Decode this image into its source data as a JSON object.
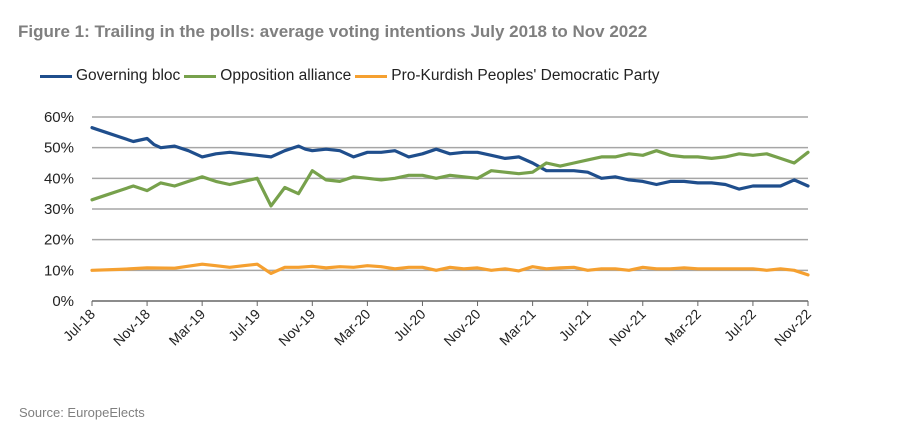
{
  "header": {
    "title": "Figure 1: Trailing in the polls: average voting intentions July 2018 to Nov 2022",
    "source": "Source: EuropeElects"
  },
  "chart_data": {
    "type": "line",
    "title": "Figure 1: Trailing in the polls: average voting intentions July 2018 to Nov 2022",
    "xlabel": "",
    "ylabel": "",
    "ylim": [
      0,
      60
    ],
    "y_ticks": [
      "0%",
      "10%",
      "20%",
      "30%",
      "40%",
      "50%",
      "60%"
    ],
    "y_tick_values": [
      0,
      10,
      20,
      30,
      40,
      50,
      60
    ],
    "x_ticks": [
      "Jul-18",
      "Nov-18",
      "Mar-19",
      "Jul-19",
      "Nov-19",
      "Mar-20",
      "Jul-20",
      "Nov-20",
      "Mar-21",
      "Jul-21",
      "Nov-21",
      "Mar-22",
      "Jul-22",
      "Nov-22"
    ],
    "grid": "horizontal",
    "legend_position": "top",
    "x_unit": "months since Jul-18",
    "series": [
      {
        "name": "Governing bloc",
        "color": "#1f4e8c",
        "points": [
          [
            0,
            56.5
          ],
          [
            1,
            55
          ],
          [
            2,
            53.5
          ],
          [
            3,
            52
          ],
          [
            3.5,
            52.5
          ],
          [
            4,
            53
          ],
          [
            4.5,
            51
          ],
          [
            5,
            50
          ],
          [
            6,
            50.5
          ],
          [
            7,
            49
          ],
          [
            8,
            47
          ],
          [
            9,
            48
          ],
          [
            10,
            48.5
          ],
          [
            11,
            48
          ],
          [
            12,
            47.5
          ],
          [
            13,
            47
          ],
          [
            14,
            49
          ],
          [
            15,
            50.5
          ],
          [
            15.5,
            49.5
          ],
          [
            16,
            49
          ],
          [
            17,
            49.5
          ],
          [
            18,
            49
          ],
          [
            19,
            47
          ],
          [
            20,
            48.5
          ],
          [
            21,
            48.5
          ],
          [
            22,
            49
          ],
          [
            23,
            47
          ],
          [
            24,
            48
          ],
          [
            25,
            49.5
          ],
          [
            26,
            48
          ],
          [
            27,
            48.5
          ],
          [
            28,
            48.5
          ],
          [
            29,
            47.5
          ],
          [
            30,
            46.5
          ],
          [
            31,
            47
          ],
          [
            32,
            45
          ],
          [
            33,
            42.5
          ],
          [
            34,
            42.5
          ],
          [
            35,
            42.5
          ],
          [
            36,
            42
          ],
          [
            37,
            40
          ],
          [
            38,
            40.5
          ],
          [
            39,
            39.5
          ],
          [
            40,
            39
          ],
          [
            41,
            38
          ],
          [
            42,
            39
          ],
          [
            43,
            39
          ],
          [
            44,
            38.5
          ],
          [
            45,
            38.5
          ],
          [
            46,
            38
          ],
          [
            47,
            36.5
          ],
          [
            48,
            37.5
          ],
          [
            49,
            37.5
          ],
          [
            50,
            37.5
          ],
          [
            51,
            39.5
          ],
          [
            52,
            37.5
          ]
        ]
      },
      {
        "name": "Opposition alliance",
        "color": "#77a14c",
        "points": [
          [
            0,
            33
          ],
          [
            1,
            34.5
          ],
          [
            2,
            36
          ],
          [
            3,
            37.5
          ],
          [
            4,
            36
          ],
          [
            5,
            38.5
          ],
          [
            6,
            37.5
          ],
          [
            7,
            39
          ],
          [
            8,
            40.5
          ],
          [
            9,
            39
          ],
          [
            10,
            38
          ],
          [
            11,
            39
          ],
          [
            12,
            40
          ],
          [
            13,
            31
          ],
          [
            14,
            37
          ],
          [
            15,
            35
          ],
          [
            16,
            42.5
          ],
          [
            17,
            39.5
          ],
          [
            18,
            39
          ],
          [
            19,
            40.5
          ],
          [
            20,
            40
          ],
          [
            21,
            39.5
          ],
          [
            22,
            40
          ],
          [
            23,
            41
          ],
          [
            24,
            41
          ],
          [
            25,
            40
          ],
          [
            26,
            41
          ],
          [
            27,
            40.5
          ],
          [
            28,
            40
          ],
          [
            29,
            42.5
          ],
          [
            30,
            42
          ],
          [
            31,
            41.5
          ],
          [
            32,
            42
          ],
          [
            33,
            45
          ],
          [
            34,
            44
          ],
          [
            35,
            45
          ],
          [
            36,
            46
          ],
          [
            37,
            47
          ],
          [
            38,
            47
          ],
          [
            39,
            48
          ],
          [
            40,
            47.5
          ],
          [
            41,
            49
          ],
          [
            42,
            47.5
          ],
          [
            43,
            47
          ],
          [
            44,
            47
          ],
          [
            45,
            46.5
          ],
          [
            46,
            47
          ],
          [
            47,
            48
          ],
          [
            48,
            47.5
          ],
          [
            49,
            48
          ],
          [
            50,
            46.5
          ],
          [
            51,
            45
          ],
          [
            52,
            48.5
          ]
        ]
      },
      {
        "name": "Pro-Kurdish Peoples' Democratic Party",
        "color": "#f5a030",
        "points": [
          [
            0,
            10
          ],
          [
            2,
            10.3
          ],
          [
            4,
            10.8
          ],
          [
            6,
            10.7
          ],
          [
            8,
            12
          ],
          [
            9,
            11.5
          ],
          [
            10,
            11
          ],
          [
            11,
            11.5
          ],
          [
            12,
            12
          ],
          [
            13,
            9
          ],
          [
            14,
            11
          ],
          [
            15,
            11
          ],
          [
            16,
            11.3
          ],
          [
            17,
            10.8
          ],
          [
            18,
            11.2
          ],
          [
            19,
            11
          ],
          [
            20,
            11.5
          ],
          [
            21,
            11.2
          ],
          [
            22,
            10.5
          ],
          [
            23,
            11
          ],
          [
            24,
            11
          ],
          [
            25,
            10
          ],
          [
            26,
            11
          ],
          [
            27,
            10.5
          ],
          [
            28,
            10.8
          ],
          [
            29,
            10
          ],
          [
            30,
            10.5
          ],
          [
            31,
            9.8
          ],
          [
            32,
            11.2
          ],
          [
            33,
            10.5
          ],
          [
            34,
            10.8
          ],
          [
            35,
            11
          ],
          [
            36,
            10
          ],
          [
            37,
            10.5
          ],
          [
            38,
            10.5
          ],
          [
            39,
            10
          ],
          [
            40,
            11
          ],
          [
            41,
            10.5
          ],
          [
            42,
            10.5
          ],
          [
            43,
            10.8
          ],
          [
            44,
            10.5
          ],
          [
            45,
            10.5
          ],
          [
            46,
            10.5
          ],
          [
            47,
            10.5
          ],
          [
            48,
            10.5
          ],
          [
            49,
            10
          ],
          [
            50,
            10.5
          ],
          [
            51,
            10
          ],
          [
            52,
            8.5
          ]
        ]
      }
    ]
  }
}
